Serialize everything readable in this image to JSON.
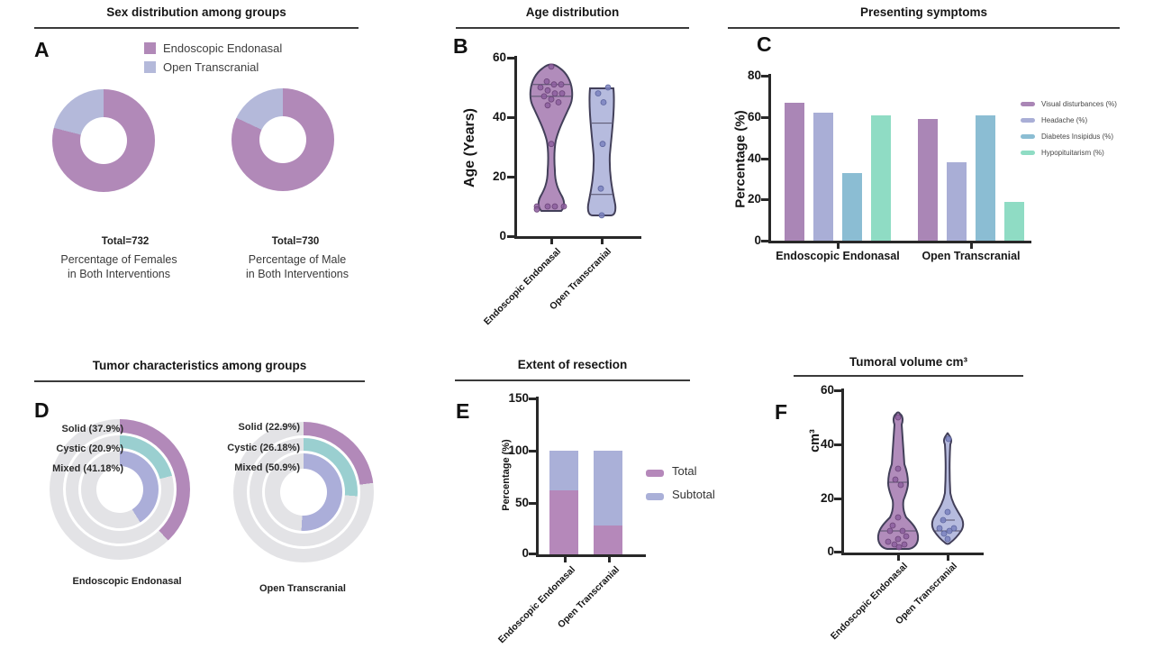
{
  "chart_data": [
    {
      "panel": "A",
      "type": "donut-pair",
      "title": "Sex distribution among groups",
      "legend": [
        {
          "label": "Endoscopic Endonasal",
          "color": "#b189b8"
        },
        {
          "label": "Open Transcranial",
          "color": "#b4b9da"
        }
      ],
      "donuts": [
        {
          "total": "Total=732",
          "caption": [
            "Percentage of Females",
            "in Both Interventions"
          ],
          "slices": [
            {
              "label": "Endoscopic Endonasal",
              "pct": 79
            },
            {
              "label": "Open Transcranial",
              "pct": 21
            }
          ]
        },
        {
          "total": "Total=730",
          "caption": [
            "Percentage of Male",
            "in Both Interventions"
          ],
          "slices": [
            {
              "label": "Endoscopic Endonasal",
              "pct": 82
            },
            {
              "label": "Open Transcranial",
              "pct": 18
            }
          ]
        }
      ]
    },
    {
      "panel": "B",
      "type": "violin",
      "title": "Age distribution",
      "ylabel": "Age (Years)",
      "ylim": [
        0,
        60
      ],
      "yticks": [
        "60",
        "40",
        "20",
        "0"
      ],
      "categories": [
        "Endoscopic Endonasal",
        "Open Transcranial"
      ],
      "series": [
        {
          "name": "Endoscopic Endonasal",
          "color": "#a97fb4",
          "point_color": "#8d5f9f",
          "point_stroke": "#6b4478",
          "points": [
            57,
            52,
            51,
            51,
            50,
            49,
            48,
            48,
            47,
            46,
            45,
            44,
            31,
            10,
            10,
            10,
            10,
            9
          ],
          "dx": [
            0,
            -5,
            3,
            11,
            -12,
            -4,
            4,
            12,
            -8,
            0,
            8,
            -4,
            0,
            -16,
            -4,
            4,
            14,
            -16
          ],
          "lines": [
            51,
            47
          ]
        },
        {
          "name": "Open Transcranial",
          "color": "#aeb4da",
          "point_color": "#7b83bf",
          "point_stroke": "#5d659e",
          "points": [
            50,
            48,
            45,
            31,
            16,
            7
          ],
          "dx": [
            7,
            -4,
            2,
            1,
            -1,
            0
          ],
          "lines": [
            38,
            14
          ]
        }
      ]
    },
    {
      "panel": "C",
      "type": "bar",
      "title": "Presenting symptoms",
      "ylabel": "Percentage (%)",
      "ylim": [
        0,
        80
      ],
      "yticks": [
        "80",
        "60",
        "40",
        "20",
        "0"
      ],
      "categories": [
        "Endoscopic Endonasal",
        "Open Transcranial"
      ],
      "series": [
        {
          "name": "Visual disturbances (%)",
          "color": "#aa86b6",
          "values": [
            67,
            59
          ]
        },
        {
          "name": "Headache (%)",
          "color": "#a9aed6",
          "values": [
            62,
            38
          ]
        },
        {
          "name": "Diabetes Insipidus (%)",
          "color": "#8bbdd3",
          "values": [
            33,
            61
          ]
        },
        {
          "name": "Hypopituitarism (%)",
          "color": "#8fdcc4",
          "values": [
            61,
            19
          ]
        }
      ]
    },
    {
      "panel": "D",
      "type": "nested-donut-pair",
      "title": "Tumor characteristics among groups",
      "rest_color": "#e3e3e6",
      "donuts": [
        {
          "caption": "Endoscopic Endonasal",
          "rings": [
            {
              "label": "Solid (37.9%)",
              "pct": 37.9,
              "color": "#b289b9"
            },
            {
              "label": "Cystic (20.9%)",
              "pct": 20.9,
              "color": "#9acfd0"
            },
            {
              "label": "Mixed (41.18%)",
              "pct": 41.18,
              "color": "#abaed9"
            }
          ]
        },
        {
          "caption": "Open Transcranial",
          "rings": [
            {
              "label": "Solid (22.9%)",
              "pct": 22.9,
              "color": "#b289b9"
            },
            {
              "label": "Cystic (26.18%)",
              "pct": 26.18,
              "color": "#9acfd0"
            },
            {
              "label": "Mixed (50.9%)",
              "pct": 50.9,
              "color": "#abaed9"
            }
          ]
        }
      ]
    },
    {
      "panel": "E",
      "type": "stacked-bar",
      "title": "Extent of resection",
      "ylabel": "Percentage (%)",
      "ylim": [
        0,
        150
      ],
      "yticks": [
        "150",
        "100",
        "50",
        "0"
      ],
      "categories": [
        "Endoscopic Endonasal",
        "Open Transcranial"
      ],
      "series": [
        {
          "name": "Total",
          "color": "#b588ba",
          "values": [
            62,
            28
          ]
        },
        {
          "name": "Subtotal",
          "color": "#aab0d8",
          "values": [
            38,
            72
          ]
        }
      ]
    },
    {
      "panel": "F",
      "type": "violin",
      "title": "Tumoral volume cm³",
      "ylabel": "cm³",
      "ylim": [
        0,
        60
      ],
      "yticks": [
        "60",
        "40",
        "20",
        "0"
      ],
      "categories": [
        "Endoscopic Endonasal",
        "Open Transcranial"
      ],
      "series": [
        {
          "name": "Endoscopic Endonasal",
          "color": "#a97fb4",
          "point_color": "#8d5f9f",
          "point_stroke": "#6b4478",
          "points": [
            50,
            31,
            27,
            25,
            13,
            10,
            8,
            8,
            6,
            5,
            4,
            3,
            3,
            2
          ],
          "dx": [
            0,
            0,
            -3,
            3,
            0,
            -6,
            5,
            -9,
            9,
            0,
            -11,
            -4,
            7,
            1
          ],
          "lines": [
            26,
            8
          ]
        },
        {
          "name": "Open Transcranial",
          "color": "#aeb4da",
          "point_color": "#7b83bf",
          "point_stroke": "#5d659e",
          "points": [
            42,
            15,
            12,
            9,
            9,
            8,
            7,
            5
          ],
          "dx": [
            1,
            0,
            -5,
            7,
            -9,
            2,
            -4,
            0
          ],
          "lines": [
            12,
            8
          ]
        }
      ]
    }
  ]
}
